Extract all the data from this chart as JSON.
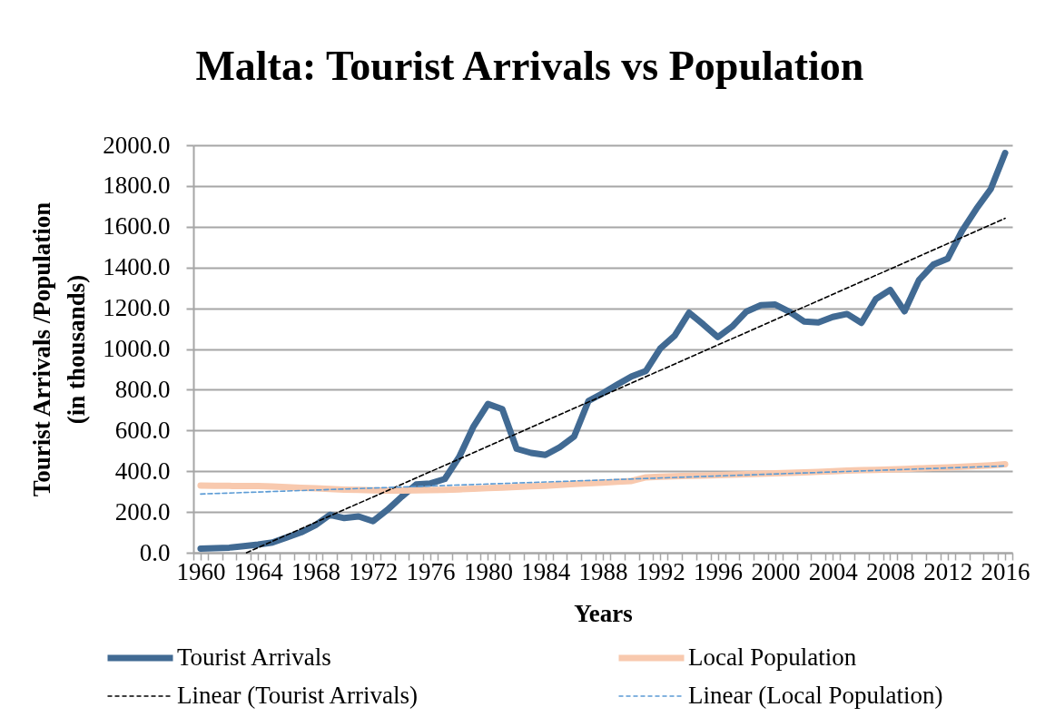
{
  "chart_data": {
    "type": "line",
    "title": "Malta: Tourist Arrivals vs Population",
    "xlabel": "Years",
    "ylabel": "Tourist Arrivals /Population\n(in thousands)",
    "x": [
      1960,
      1961,
      1962,
      1963,
      1964,
      1965,
      1966,
      1967,
      1968,
      1969,
      1970,
      1971,
      1972,
      1973,
      1974,
      1975,
      1976,
      1977,
      1978,
      1979,
      1980,
      1981,
      1982,
      1983,
      1984,
      1985,
      1986,
      1987,
      1988,
      1989,
      1990,
      1991,
      1992,
      1993,
      1994,
      1995,
      1996,
      1997,
      1998,
      1999,
      2000,
      2001,
      2002,
      2003,
      2004,
      2005,
      2006,
      2007,
      2008,
      2009,
      2010,
      2011,
      2012,
      2013,
      2014,
      2015,
      2016
    ],
    "xlim": [
      1959.5,
      2016.5
    ],
    "xticks": [
      {
        "value": 1959.5,
        "label": null
      },
      1960,
      {
        "value": 1960.5,
        "label": null
      },
      {
        "value": 1961.5,
        "label": null
      },
      {
        "value": 1962.5,
        "label": null
      },
      {
        "value": 1963.5,
        "label": null
      },
      1964,
      {
        "value": 1964.5,
        "label": null
      },
      {
        "value": 1965.5,
        "label": null
      },
      {
        "value": 1966.5,
        "label": null
      },
      {
        "value": 1967.5,
        "label": null
      },
      1968,
      {
        "value": 1968.5,
        "label": null
      },
      {
        "value": 1969.5,
        "label": null
      },
      {
        "value": 1970.5,
        "label": null
      },
      {
        "value": 1971.5,
        "label": null
      },
      1972,
      {
        "value": 1972.5,
        "label": null
      },
      {
        "value": 1973.5,
        "label": null
      },
      {
        "value": 1974.5,
        "label": null
      },
      {
        "value": 1975.5,
        "label": null
      },
      1976,
      {
        "value": 1976.5,
        "label": null
      },
      {
        "value": 1977.5,
        "label": null
      },
      {
        "value": 1978.5,
        "label": null
      },
      {
        "value": 1979.5,
        "label": null
      },
      1980,
      {
        "value": 1980.5,
        "label": null
      },
      {
        "value": 1981.5,
        "label": null
      },
      {
        "value": 1982.5,
        "label": null
      },
      {
        "value": 1983.5,
        "label": null
      },
      1984,
      {
        "value": 1984.5,
        "label": null
      },
      {
        "value": 1985.5,
        "label": null
      },
      {
        "value": 1986.5,
        "label": null
      },
      {
        "value": 1987.5,
        "label": null
      },
      1988,
      {
        "value": 1988.5,
        "label": null
      },
      {
        "value": 1989.5,
        "label": null
      },
      {
        "value": 1990.5,
        "label": null
      },
      {
        "value": 1991.5,
        "label": null
      },
      1992,
      {
        "value": 1992.5,
        "label": null
      },
      {
        "value": 1993.5,
        "label": null
      },
      {
        "value": 1994.5,
        "label": null
      },
      {
        "value": 1995.5,
        "label": null
      },
      1996,
      {
        "value": 1996.5,
        "label": null
      },
      {
        "value": 1997.5,
        "label": null
      },
      {
        "value": 1998.5,
        "label": null
      },
      {
        "value": 1999.5,
        "label": null
      },
      2000,
      {
        "value": 2000.5,
        "label": null
      },
      {
        "value": 2001.5,
        "label": null
      },
      {
        "value": 2002.5,
        "label": null
      },
      {
        "value": 2003.5,
        "label": null
      },
      2004,
      {
        "value": 2004.5,
        "label": null
      },
      {
        "value": 2005.5,
        "label": null
      },
      {
        "value": 2006.5,
        "label": null
      },
      {
        "value": 2007.5,
        "label": null
      },
      2008,
      {
        "value": 2008.5,
        "label": null
      },
      {
        "value": 2009.5,
        "label": null
      },
      {
        "value": 2010.5,
        "label": null
      },
      {
        "value": 2011.5,
        "label": null
      },
      2012,
      {
        "value": 2012.5,
        "label": null
      },
      {
        "value": 2013.5,
        "label": null
      },
      {
        "value": 2014.5,
        "label": null
      },
      {
        "value": 2015.5,
        "label": null
      },
      2016,
      {
        "value": 2016.5,
        "label": null
      }
    ],
    "ylim": [
      0,
      2000
    ],
    "yticks": [
      {
        "value": 0,
        "label": "0.0"
      },
      {
        "value": 200,
        "label": "200.0"
      },
      {
        "value": 400,
        "label": "400.0"
      },
      {
        "value": 600,
        "label": "600.0"
      },
      {
        "value": 800,
        "label": "800.0"
      },
      {
        "value": 1000,
        "label": "1000.0"
      },
      {
        "value": 1200,
        "label": "1200.0"
      },
      {
        "value": 1400,
        "label": "1400.0"
      },
      {
        "value": 1600,
        "label": "1600.0"
      },
      {
        "value": 1800,
        "label": "1800.0"
      },
      {
        "value": 2000,
        "label": "2000.0"
      }
    ],
    "grid": "y",
    "legend": "bottom",
    "series": [
      {
        "name": "Tourist Arrivals",
        "color": "#416a93",
        "line_style": "solid",
        "values": [
          20,
          22,
          25,
          32,
          40,
          50,
          75,
          100,
          135,
          186,
          170,
          178,
          155,
          210,
          275,
          335,
          340,
          362,
          470,
          620,
          730,
          705,
          510,
          490,
          480,
          518,
          570,
          745,
          783,
          825,
          865,
          892,
          1003,
          1065,
          1178,
          1120,
          1058,
          1110,
          1184,
          1215,
          1218,
          1182,
          1135,
          1130,
          1157,
          1172,
          1128,
          1245,
          1290,
          1185,
          1338,
          1414,
          1443,
          1580,
          1688,
          1785,
          1962
        ]
      },
      {
        "name": "Local Population",
        "color": "#f8c9ae",
        "line_style": "solid",
        "values": [
          330,
          329,
          328,
          327,
          327,
          325,
          322,
          319,
          316,
          313,
          310,
          308,
          306,
          305,
          305,
          306,
          307,
          309,
          311,
          314,
          317,
          320,
          323,
          326,
          329,
          333,
          337,
          341,
          344,
          348,
          352,
          370,
          373,
          375,
          377,
          379,
          381,
          383,
          385,
          387,
          390,
          392,
          394,
          397,
          400,
          403,
          405,
          407,
          409,
          411,
          414,
          416,
          419,
          422,
          425,
          429,
          434
        ]
      },
      {
        "name": "Linear (Tourist Arrivals)",
        "color": "#000000",
        "line_style": "dashed",
        "x": [
          1963.2,
          2016
        ],
        "values": [
          0,
          1641
        ]
      },
      {
        "name": "Linear (Local Population)",
        "color": "#5b9bd5",
        "line_style": "dashed",
        "x": [
          1960,
          2016
        ],
        "values": [
          288,
          426
        ]
      }
    ]
  }
}
